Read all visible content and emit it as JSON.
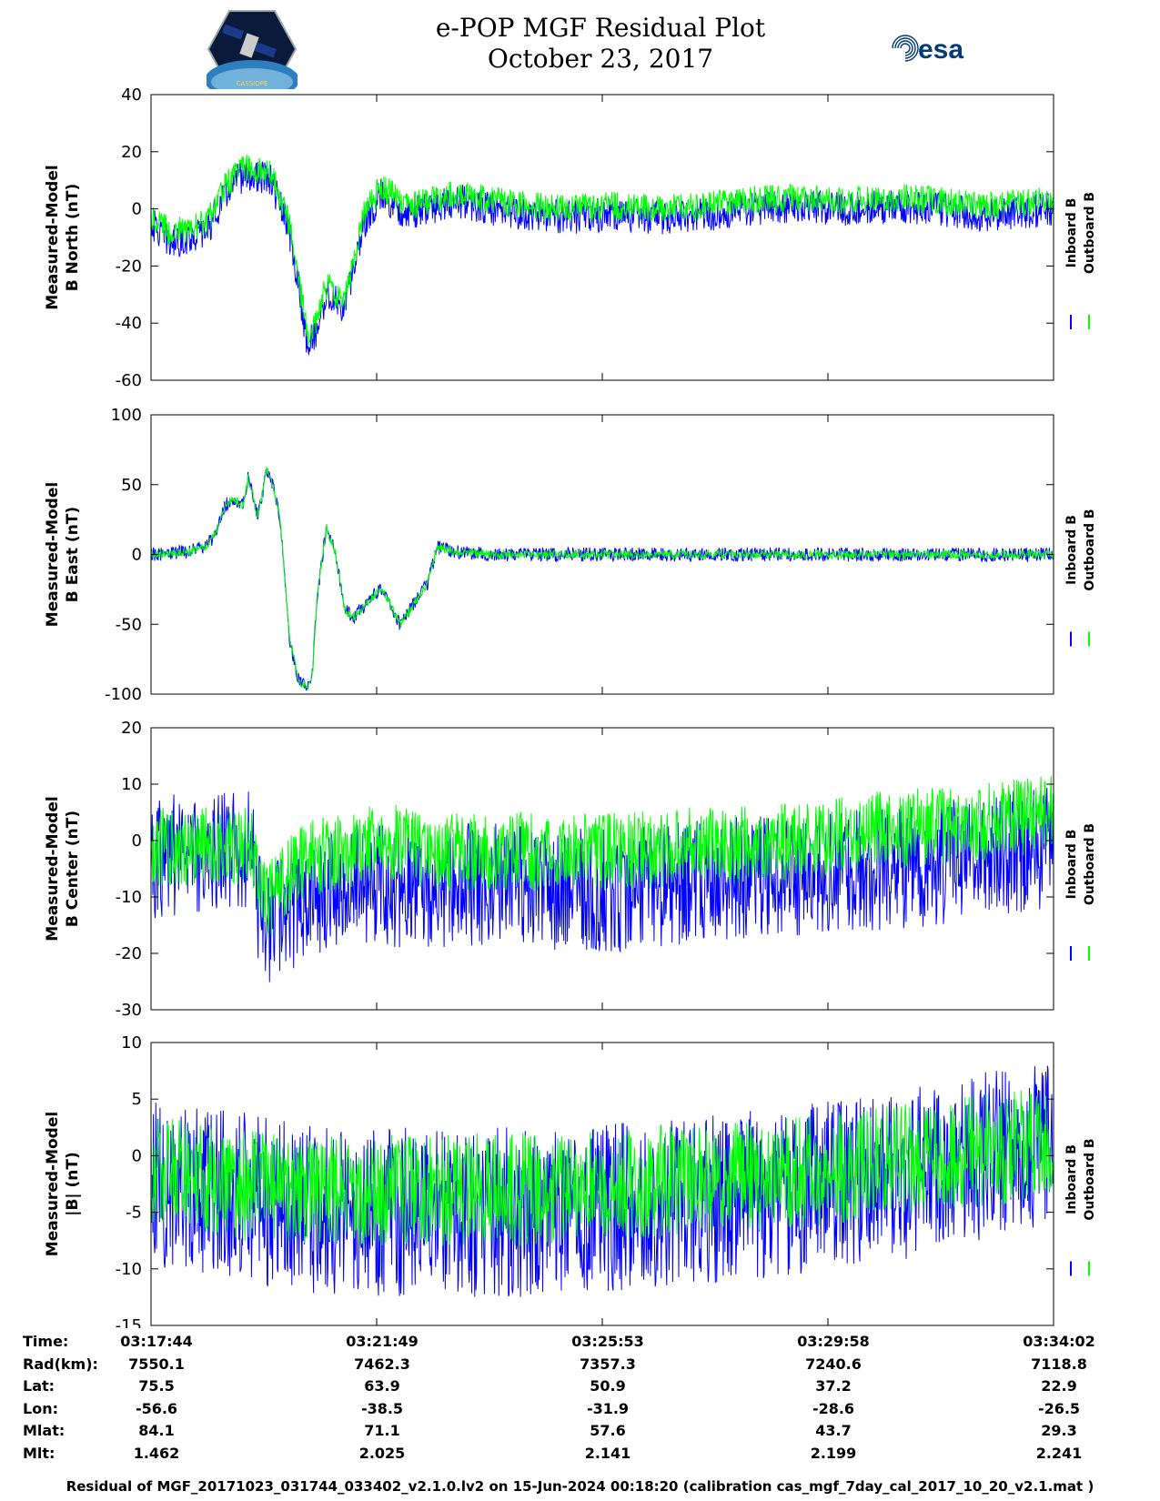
{
  "header": {
    "title_line1": "e-POP MGF Residual Plot",
    "title_line2": "October 23, 2017",
    "logo_left_text": "CASSIOPE",
    "logo_right_text": "esa"
  },
  "colors": {
    "inboard": "#0000ff",
    "outboard": "#00ff00",
    "axis": "#000000"
  },
  "chart_data": [
    {
      "type": "line",
      "ylabel": [
        "Measured-Model",
        "B North (nT)"
      ],
      "yticks": [
        40,
        20,
        0,
        -20,
        -40,
        -60
      ],
      "ylim": [
        -60,
        40
      ],
      "x_range_s": [
        0,
        978
      ],
      "series": [
        {
          "name": "Inboard B",
          "color": "#0000ff",
          "x": [
            0,
            20,
            40,
            60,
            80,
            100,
            130,
            150,
            170,
            180,
            190,
            210,
            230,
            250,
            270,
            280,
            300,
            330,
            370,
            410,
            450,
            500,
            550,
            600,
            650,
            700,
            750,
            800,
            850,
            900,
            950,
            978
          ],
          "y": [
            -5,
            -12,
            -10,
            -8,
            5,
            12,
            10,
            -8,
            -48,
            -42,
            -30,
            -35,
            -5,
            5,
            0,
            -2,
            0,
            3,
            0,
            -2,
            -3,
            -2,
            -3,
            -2,
            0,
            1,
            0,
            1,
            0,
            -2,
            -1,
            0
          ],
          "noise": 6
        },
        {
          "name": "Outboard B",
          "color": "#00ff00",
          "x": [
            0,
            20,
            40,
            60,
            80,
            100,
            130,
            150,
            170,
            180,
            190,
            210,
            230,
            250,
            270,
            280,
            300,
            330,
            370,
            410,
            450,
            500,
            550,
            600,
            650,
            700,
            750,
            800,
            850,
            900,
            950,
            978
          ],
          "y": [
            -2,
            -8,
            -7,
            -5,
            8,
            15,
            13,
            -5,
            -45,
            -38,
            -27,
            -32,
            -2,
            8,
            3,
            1,
            3,
            5,
            3,
            1,
            0,
            1,
            0,
            1,
            3,
            4,
            3,
            4,
            3,
            1,
            2,
            3
          ],
          "noise": 5
        }
      ],
      "legend": [
        "Inboard B",
        "Outboard B"
      ],
      "legend_position": "right"
    },
    {
      "type": "line",
      "ylabel": [
        "Measured-Model",
        "B East (nT)"
      ],
      "yticks": [
        100,
        50,
        0,
        -50,
        -100
      ],
      "ylim": [
        -100,
        100
      ],
      "x_range_s": [
        0,
        978
      ],
      "series": [
        {
          "name": "Inboard B",
          "color": "#0000ff",
          "x": [
            0,
            40,
            60,
            70,
            80,
            90,
            100,
            105,
            110,
            115,
            120,
            125,
            130,
            140,
            150,
            160,
            170,
            175,
            180,
            190,
            200,
            210,
            220,
            240,
            250,
            255,
            270,
            280,
            290,
            300,
            310,
            330,
            370,
            450,
            550,
            650,
            750,
            850,
            978
          ],
          "y": [
            0,
            2,
            6,
            15,
            35,
            40,
            35,
            55,
            45,
            28,
            40,
            62,
            55,
            25,
            -60,
            -90,
            -95,
            -85,
            -30,
            20,
            0,
            -40,
            -45,
            -30,
            -25,
            -30,
            -50,
            -40,
            -30,
            -20,
            5,
            2,
            0,
            0,
            0,
            0,
            0,
            0,
            0
          ],
          "noise": 5
        },
        {
          "name": "Outboard B",
          "color": "#00ff00",
          "x": [
            0,
            40,
            60,
            70,
            80,
            90,
            100,
            105,
            110,
            115,
            120,
            125,
            130,
            140,
            150,
            160,
            170,
            175,
            180,
            190,
            200,
            210,
            220,
            240,
            250,
            255,
            270,
            280,
            290,
            300,
            310,
            330,
            370,
            450,
            550,
            650,
            750,
            850,
            978
          ],
          "y": [
            0,
            2,
            6,
            15,
            35,
            40,
            35,
            55,
            45,
            28,
            40,
            62,
            55,
            25,
            -60,
            -90,
            -95,
            -85,
            -30,
            20,
            0,
            -40,
            -45,
            -30,
            -25,
            -30,
            -50,
            -40,
            -30,
            -20,
            5,
            2,
            0,
            0,
            0,
            0,
            0,
            0,
            0
          ],
          "noise": 3
        }
      ],
      "legend": [
        "Inboard B",
        "Outboard B"
      ],
      "legend_position": "right"
    },
    {
      "type": "line",
      "ylabel": [
        "Measured-Model",
        "B Center (nT)"
      ],
      "yticks": [
        20,
        10,
        0,
        -10,
        -20,
        -30
      ],
      "ylim": [
        -30,
        20
      ],
      "x_range_s": [
        0,
        978
      ],
      "series": [
        {
          "name": "Inboard B",
          "color": "#0000ff",
          "x": [
            0,
            110,
            115,
            130,
            150,
            170,
            200,
            250,
            300,
            400,
            500,
            600,
            700,
            800,
            900,
            978
          ],
          "y": [
            -3,
            -2,
            -10,
            -16,
            -12,
            -11,
            -8,
            -8,
            -8,
            -8,
            -9,
            -7,
            -6,
            -5,
            -3,
            -1
          ],
          "noise": 11
        },
        {
          "name": "Outboard B",
          "color": "#00ff00",
          "x": [
            0,
            110,
            115,
            130,
            150,
            170,
            200,
            250,
            300,
            400,
            500,
            600,
            700,
            800,
            900,
            978
          ],
          "y": [
            -1,
            -1,
            -8,
            -10,
            -6,
            -3,
            -2,
            0,
            -2,
            -2,
            -2,
            -1,
            0,
            2,
            3,
            5
          ],
          "noise": 7
        }
      ],
      "legend": [
        "Inboard B",
        "Outboard B"
      ],
      "legend_position": "right"
    },
    {
      "type": "line",
      "ylabel": [
        "Measured-Model",
        "|B| (nT)"
      ],
      "yticks": [
        10,
        5,
        0,
        -5,
        -10,
        -15
      ],
      "ylim": [
        -15,
        10
      ],
      "x_range_s": [
        0,
        978
      ],
      "series": [
        {
          "name": "Inboard B",
          "color": "#0000ff",
          "x": [
            0,
            100,
            150,
            200,
            300,
            400,
            500,
            600,
            700,
            800,
            900,
            978
          ],
          "y": [
            -2.5,
            -3.5,
            -4.5,
            -4.8,
            -5,
            -5,
            -4.5,
            -4,
            -3,
            -2,
            0,
            1
          ],
          "noise": 7.5
        },
        {
          "name": "Outboard B",
          "color": "#00ff00",
          "x": [
            0,
            100,
            150,
            200,
            300,
            400,
            500,
            600,
            700,
            800,
            900,
            978
          ],
          "y": [
            -1.5,
            -2.5,
            -3,
            -3.2,
            -3,
            -3,
            -2.5,
            -2,
            -1.5,
            -0.5,
            0.5,
            1
          ],
          "noise": 5
        }
      ],
      "legend": [
        "Inboard B",
        "Outboard B"
      ],
      "legend_position": "right"
    }
  ],
  "ephemeris": {
    "labels": [
      "Time:",
      "Rad(km):",
      "Lat:",
      "Lon:",
      "Mlat:",
      "Mlt:"
    ],
    "columns": [
      [
        "03:17:44",
        "7550.1",
        "75.5",
        "-56.6",
        "84.1",
        "1.462"
      ],
      [
        "03:21:49",
        "7462.3",
        "63.9",
        "-38.5",
        "71.1",
        "2.025"
      ],
      [
        "03:25:53",
        "7357.3",
        "50.9",
        "-31.9",
        "57.6",
        "2.141"
      ],
      [
        "03:29:58",
        "7240.6",
        "37.2",
        "-28.6",
        "43.7",
        "2.199"
      ],
      [
        "03:34:02",
        "7118.8",
        "22.9",
        "-26.5",
        "29.3",
        "2.241"
      ]
    ]
  },
  "footer": "Residual of MGF_20171023_031744_033402_v2.1.0.lv2 on 15-Jun-2024 00:18:20 (calibration cas_mgf_7day_cal_2017_10_20_v2.1.mat )"
}
